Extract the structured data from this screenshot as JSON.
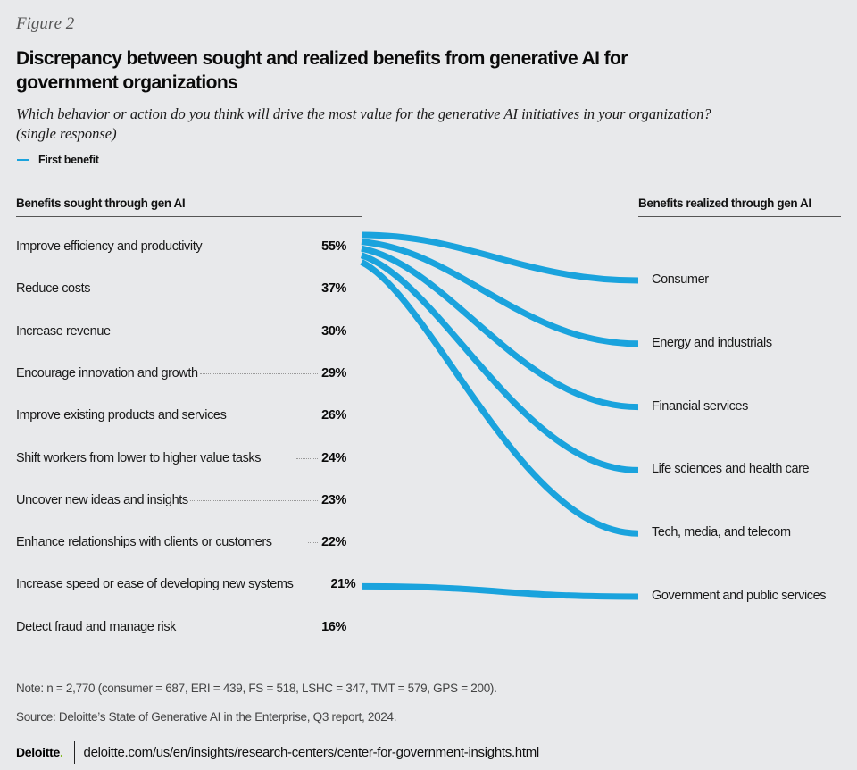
{
  "figure_label": "Figure 2",
  "title": "Discrepancy between sought and realized benefits from generative AI for government organizations",
  "subtitle": "Which behavior or action do you think will drive the most value for the generative AI initiatives in your organization? (single response)",
  "legend": {
    "label": "First benefit",
    "color": "#1aa3dd"
  },
  "left_header": "Benefits sought through gen AI",
  "right_header": "Benefits realized through gen AI",
  "chart_data": {
    "type": "flow",
    "title": "Discrepancy between sought and realized benefits from generative AI for government organizations",
    "series_color": "#1aa3dd",
    "sought": [
      {
        "label": "Improve efficiency and productivity",
        "value": "55%"
      },
      {
        "label": "Reduce costs",
        "value": "37%"
      },
      {
        "label": "Increase revenue",
        "value": "30%"
      },
      {
        "label": "Encourage innovation and growth",
        "value": "29%"
      },
      {
        "label": "Improve existing products and services",
        "value": "26%"
      },
      {
        "label": "Shift workers from lower to higher value tasks",
        "value": "24%"
      },
      {
        "label": "Uncover new ideas and insights",
        "value": "23%"
      },
      {
        "label": "Enhance relationships with clients or customers",
        "value": "22%"
      },
      {
        "label": "Increase speed or ease of developing new systems",
        "value": "21%"
      },
      {
        "label": "Detect fraud and manage risk",
        "value": "16%"
      }
    ],
    "realized": [
      "Consumer",
      "Energy and industrials",
      "Financial services",
      "Life sciences and health care",
      "Tech, media, and telecom",
      "Government and public services"
    ],
    "links": [
      {
        "from": "Improve efficiency and productivity",
        "to": "Consumer"
      },
      {
        "from": "Improve efficiency and productivity",
        "to": "Energy and industrials"
      },
      {
        "from": "Improve efficiency and productivity",
        "to": "Financial services"
      },
      {
        "from": "Improve efficiency and productivity",
        "to": "Life sciences and health care"
      },
      {
        "from": "Improve efficiency and productivity",
        "to": "Tech, media, and telecom"
      },
      {
        "from": "Increase speed or ease of developing new systems",
        "to": "Government and public services"
      }
    ]
  },
  "note": "Note: n = 2,770 (consumer = 687, ERI = 439, FS = 518, LSHC = 347, TMT = 579, GPS = 200).",
  "source": "Source: Deloitte’s State of Generative AI in the Enterprise, Q3 report, 2024.",
  "footer": {
    "logo": "Deloitte",
    "logo_dot": ".",
    "url": "deloitte.com/us/en/insights/research-centers/center-for-government-insights.html"
  }
}
